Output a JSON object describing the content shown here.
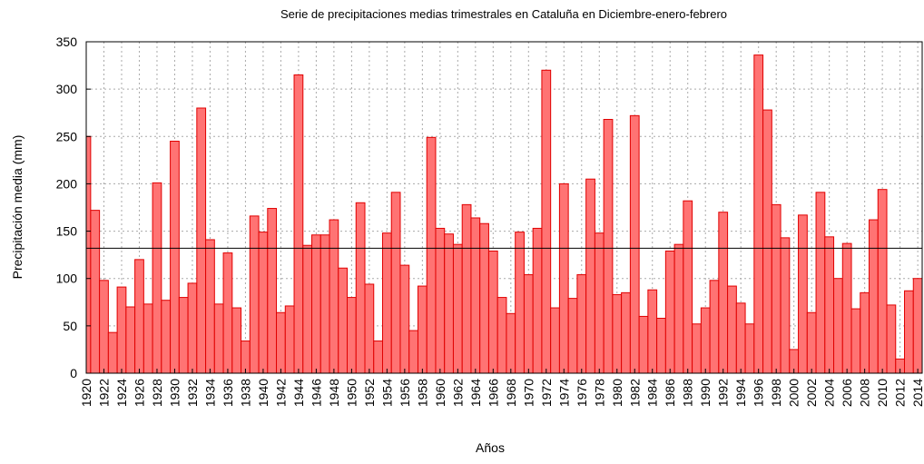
{
  "chart_data": {
    "type": "bar",
    "title": "Serie de precipitaciones  medias trimestrales en Cataluña en Diciembre-enero-febrero",
    "xlabel": "Años",
    "ylabel": "Precipitación media (mm)",
    "x": [
      1920,
      1921,
      1922,
      1923,
      1924,
      1925,
      1926,
      1927,
      1928,
      1929,
      1930,
      1931,
      1932,
      1933,
      1934,
      1935,
      1936,
      1937,
      1938,
      1939,
      1940,
      1941,
      1942,
      1943,
      1944,
      1945,
      1946,
      1947,
      1948,
      1949,
      1950,
      1951,
      1952,
      1953,
      1954,
      1955,
      1956,
      1957,
      1958,
      1959,
      1960,
      1961,
      1962,
      1963,
      1964,
      1965,
      1966,
      1967,
      1968,
      1969,
      1970,
      1971,
      1972,
      1973,
      1974,
      1975,
      1976,
      1977,
      1978,
      1979,
      1980,
      1981,
      1982,
      1983,
      1984,
      1985,
      1986,
      1987,
      1988,
      1989,
      1990,
      1991,
      1992,
      1993,
      1994,
      1995,
      1996,
      1997,
      1998,
      1999,
      2000,
      2001,
      2002,
      2003,
      2004,
      2005,
      2006,
      2007,
      2008,
      2009,
      2010,
      2011,
      2012,
      2013,
      2014
    ],
    "values": [
      250,
      172,
      98,
      43,
      91,
      70,
      120,
      73,
      201,
      77,
      245,
      80,
      95,
      280,
      141,
      73,
      127,
      69,
      34,
      166,
      149,
      174,
      64,
      71,
      315,
      135,
      146,
      146,
      162,
      111,
      80,
      180,
      94,
      34,
      148,
      191,
      114,
      45,
      92,
      249,
      153,
      147,
      136,
      178,
      164,
      158,
      129,
      80,
      63,
      149,
      104,
      153,
      320,
      69,
      200,
      79,
      104,
      205,
      148,
      268,
      83,
      85,
      272,
      60,
      88,
      58,
      129,
      136,
      182,
      52,
      69,
      98,
      170,
      92,
      74,
      52,
      336,
      278,
      178,
      143,
      25,
      167,
      64,
      191,
      144,
      100,
      137,
      68,
      85,
      162,
      194,
      72,
      15,
      87,
      100
    ],
    "mean": 132,
    "color": "#ff7373",
    "edge_color": "#e00000",
    "xlim": [
      1920,
      2014.5
    ],
    "ylim": [
      0,
      350
    ],
    "xticks": [
      1920,
      1922,
      1924,
      1926,
      1928,
      1930,
      1932,
      1934,
      1936,
      1938,
      1940,
      1942,
      1944,
      1946,
      1948,
      1950,
      1952,
      1954,
      1956,
      1958,
      1960,
      1962,
      1964,
      1966,
      1968,
      1970,
      1972,
      1974,
      1976,
      1978,
      1980,
      1982,
      1984,
      1986,
      1988,
      1990,
      1992,
      1994,
      1996,
      1998,
      2000,
      2002,
      2004,
      2006,
      2008,
      2010,
      2012,
      2014
    ],
    "yticks": [
      0,
      50,
      100,
      150,
      200,
      250,
      300,
      350
    ],
    "grid": true
  }
}
